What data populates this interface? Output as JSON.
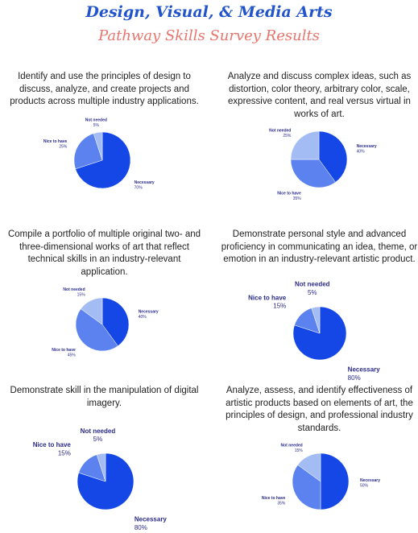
{
  "header": {
    "title": "Design, Visual, & Media Arts",
    "subtitle": "Pathway Skills Survey Results"
  },
  "chart_data": [
    {
      "type": "pie",
      "title": "Identify and use the principles of design to discuss, analyze, and create projects and products across multiple industry applications.",
      "categories": [
        "Necessary",
        "Nice to have",
        "Not needed"
      ],
      "values": [
        70,
        25,
        5
      ],
      "value_labels": [
        "70%",
        "25%",
        "5%"
      ],
      "colors": [
        "#1447e6",
        "#5b82ee",
        "#a4bcf4"
      ]
    },
    {
      "type": "pie",
      "title": "Analyze and discuss complex ideas, such as distortion, color theory, arbitrary color, scale, expressive content, and real versus virtual in works of art.",
      "categories": [
        "Necessary",
        "Nice to have",
        "Not needed"
      ],
      "values": [
        40,
        35,
        25
      ],
      "value_labels": [
        "40%",
        "35%",
        "25%"
      ],
      "colors": [
        "#1447e6",
        "#5b82ee",
        "#a4bcf4"
      ]
    },
    {
      "type": "pie",
      "title": "Compile a portfolio of multiple original two- and three-dimensional works of art that reflect technical skills in an industry-relevant application.",
      "categories": [
        "Necessary",
        "Nice to have",
        "Not needed"
      ],
      "values": [
        40,
        45,
        15
      ],
      "value_labels": [
        "40%",
        "45%",
        "15%"
      ],
      "colors": [
        "#1447e6",
        "#5b82ee",
        "#a4bcf4"
      ]
    },
    {
      "type": "pie",
      "title": "Demonstrate personal style and advanced proficiency in communicating an idea, theme, or emotion in an industry-relevant artistic product.",
      "categories": [
        "Necessary",
        "Nice to have",
        "Not needed"
      ],
      "values": [
        80,
        15,
        5
      ],
      "value_labels": [
        "80%",
        "15%",
        "5%"
      ],
      "colors": [
        "#1447e6",
        "#5b82ee",
        "#a4bcf4"
      ]
    },
    {
      "type": "pie",
      "title": "Demonstrate skill in the manipulation of digital imagery.",
      "categories": [
        "Necessary",
        "Nice to have",
        "Not needed"
      ],
      "values": [
        80,
        15,
        5
      ],
      "value_labels": [
        "80%",
        "15%",
        "5%"
      ],
      "colors": [
        "#1447e6",
        "#5b82ee",
        "#a4bcf4"
      ]
    },
    {
      "type": "pie",
      "title": "Analyze, assess, and identify effectiveness of artistic products based on elements of art, the principles of design, and professional industry standards.",
      "categories": [
        "Necessary",
        "Nice to have",
        "Not needed"
      ],
      "values": [
        50,
        35,
        15
      ],
      "value_labels": [
        "50%",
        "35%",
        "15%"
      ],
      "colors": [
        "#1447e6",
        "#5b82ee",
        "#a4bcf4"
      ]
    }
  ]
}
